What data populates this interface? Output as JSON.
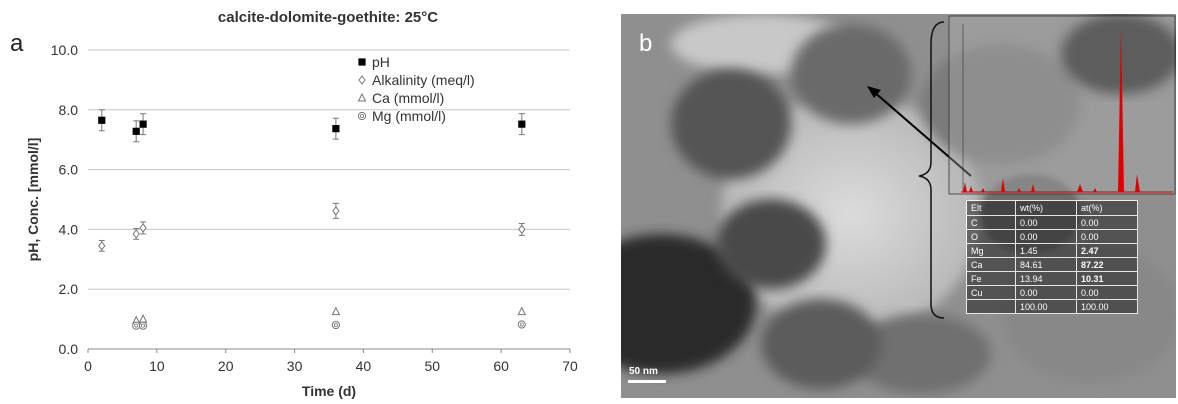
{
  "panel_a": {
    "letter": "a",
    "chart_data": {
      "type": "scatter",
      "title": "calcite-dolomite-goethite: 25°C",
      "xlabel": "Time (d)",
      "ylabel": "pH, Conc. [mmol/l]",
      "xlim": [
        0,
        70
      ],
      "ylim": [
        0,
        10
      ],
      "x_ticks": [
        "0",
        "10",
        "20",
        "30",
        "40",
        "50",
        "60",
        "70"
      ],
      "y_ticks": [
        "0.0",
        "2.0",
        "4.0",
        "6.0",
        "8.0",
        "10.0"
      ],
      "grid": "horizontal",
      "legend_position": "top-right",
      "series": [
        {
          "name": "pH",
          "marker": "filled-square",
          "x": [
            2,
            7,
            8,
            36,
            63
          ],
          "y": [
            7.65,
            7.28,
            7.52,
            7.37,
            7.52
          ],
          "error": [
            0.35,
            0.35,
            0.35,
            0.35,
            0.35
          ]
        },
        {
          "name": "Alkalinity (meq/l)",
          "marker": "diamond",
          "x": [
            2,
            7,
            8,
            36,
            63
          ],
          "y": [
            3.45,
            3.85,
            4.05,
            4.62,
            4.0
          ],
          "error": [
            0.18,
            0.18,
            0.2,
            0.25,
            0.2
          ]
        },
        {
          "name": "Ca (mmol/l)",
          "marker": "triangle",
          "x": [
            7,
            8,
            36,
            63
          ],
          "y": [
            0.95,
            1.0,
            1.25,
            1.25
          ],
          "error": [
            0,
            0,
            0,
            0
          ]
        },
        {
          "name": "Mg (mmol/l)",
          "marker": "circle",
          "x": [
            7,
            8,
            36,
            63
          ],
          "y": [
            0.78,
            0.78,
            0.8,
            0.82
          ],
          "error": [
            0,
            0,
            0,
            0
          ]
        }
      ]
    }
  },
  "panel_b": {
    "letter": "b",
    "scale_bar_label": "50 nm",
    "eds_table": {
      "headers": [
        "Elt",
        "wt(%)",
        "at(%)"
      ],
      "rows": [
        [
          "C",
          "0.00",
          "0.00"
        ],
        [
          "O",
          "0.00",
          "0.00"
        ],
        [
          "Mg",
          "1.45",
          "2.47"
        ],
        [
          "Ca",
          "84.61",
          "87.22"
        ],
        [
          "Fe",
          "13.94",
          "10.31"
        ],
        [
          "Cu",
          "0.00",
          "0.00"
        ],
        [
          "",
          "100.00",
          "100.00"
        ]
      ]
    }
  }
}
